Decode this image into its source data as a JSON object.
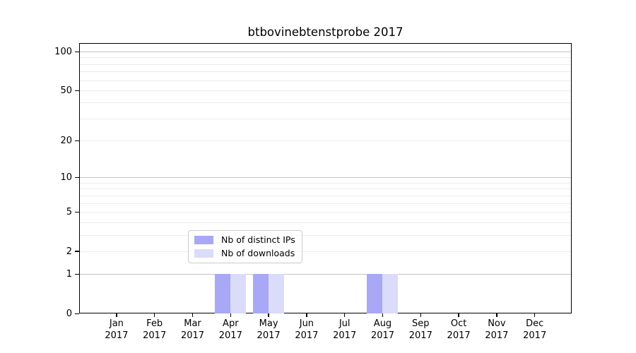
{
  "chart_data": {
    "type": "bar",
    "title": "btbovinebtenstprobe 2017",
    "categories": [
      "Jan",
      "Feb",
      "Mar",
      "Apr",
      "May",
      "Jun",
      "Jul",
      "Aug",
      "Sep",
      "Oct",
      "Nov",
      "Dec"
    ],
    "x_tick_second_line": "2017",
    "series": [
      {
        "name": "Nb of distinct IPs",
        "color": "#a8a8f6",
        "values": [
          0,
          0,
          0,
          1,
          1,
          0,
          0,
          1,
          0,
          0,
          0,
          0
        ]
      },
      {
        "name": "Nb of downloads",
        "color": "#dbdbfa",
        "values": [
          0,
          0,
          0,
          1,
          1,
          0,
          0,
          1,
          0,
          0,
          0,
          0
        ]
      }
    ],
    "xlabel": "",
    "ylabel": "",
    "y_axis": {
      "scale": "log1p",
      "tick_values": [
        0,
        1,
        2,
        5,
        10,
        20,
        50,
        100
      ],
      "tick_labels": [
        "0",
        "1",
        "2",
        "5",
        "10",
        "20",
        "50",
        "100"
      ],
      "major_gridlines": [
        1,
        10,
        100
      ],
      "minor_gridlines": [
        2,
        3,
        4,
        5,
        6,
        7,
        8,
        9,
        20,
        30,
        40,
        50,
        60,
        70,
        80,
        90
      ],
      "ylim": [
        0,
        113
      ]
    },
    "legend": {
      "entries": [
        "Nb of distinct IPs",
        "Nb of downloads"
      ],
      "position": "lower center"
    },
    "grid": true,
    "colors": {
      "major_grid": "#c3c3c3",
      "minor_grid": "#ececec",
      "spine": "#000000",
      "text": "#000000",
      "legend_border": "#cccccc",
      "legend_background": "rgba(255,255,255,0.8)"
    }
  }
}
